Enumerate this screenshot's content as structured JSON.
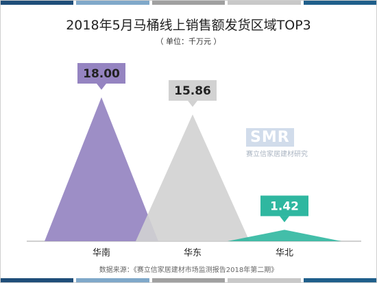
{
  "title": "2018年5月马桶线上销售额发货区域TOP3",
  "unit": "（ 单位：千万元 ）",
  "source": "数据来源：《赛立信家居建材市场监测报告2018年第二期》",
  "watermark": {
    "logo": "SMR",
    "text": "赛立信家居建材研究"
  },
  "colors": {
    "bar_top": [
      "#1f4e79",
      "#7fa8c9",
      "#a0a0a0",
      "#c8c8c8",
      "#1f5f8b"
    ],
    "bar_bottom": [
      "#1f4e79",
      "#7fa8c9",
      "#a0a0a0",
      "#c8c8c8",
      "#1f5f8b"
    ],
    "series": [
      "#9584c1",
      "#d2d2d2",
      "#2fb7a0"
    ],
    "baseline": "#d0d0d0"
  },
  "chart_data": {
    "type": "bar",
    "title": "2018年5月马桶线上销售额发货区域TOP3",
    "ylabel": "千万元",
    "categories": [
      "华南",
      "华东",
      "华北"
    ],
    "values": [
      18.0,
      15.86,
      1.42
    ],
    "labels": [
      "18.00",
      "15.86",
      "1.42"
    ],
    "ylim": [
      0,
      18
    ],
    "grid": false,
    "legend": "none"
  }
}
